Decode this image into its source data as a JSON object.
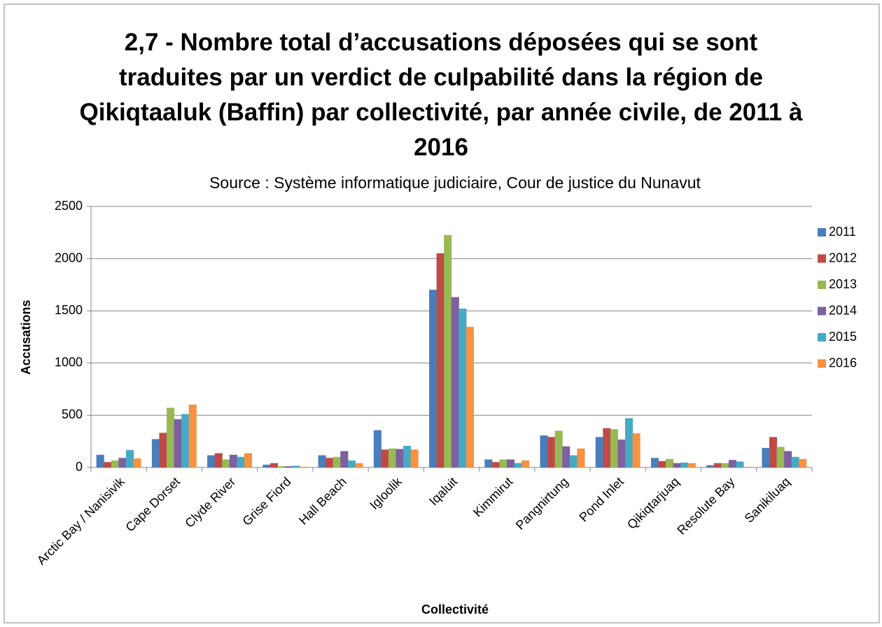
{
  "chart_data": {
    "type": "bar",
    "title": "2,7 - Nombre total d’accusations déposées qui se sont traduites par un verdict de culpabilité dans la région de Qikiqtaaluk (Baffin) par collectivité, par année civile, de 2011 à 2016",
    "subtitle": "Source : Système informatique judiciaire, Cour de justice du Nunavut",
    "x_label": "Collectivité",
    "y_label": "Accusations",
    "categories": [
      "Arctic Bay / Nanisivik",
      "Cape Dorset",
      "Clyde River",
      "Grise Fiord",
      "Hall Beach",
      "Igloolik",
      "Iqaluit",
      "Kimmirut",
      "Pangnirtung",
      "Pond Inlet",
      "Qikiqtarjuaq",
      "Resolute Bay",
      "Sanikiluaq"
    ],
    "series": [
      {
        "name": "2011",
        "color": "#4a7ebb",
        "values": [
          120,
          270,
          115,
          25,
          115,
          355,
          1700,
          75,
          305,
          290,
          90,
          20,
          185
        ]
      },
      {
        "name": "2012",
        "color": "#be4b48",
        "values": [
          50,
          330,
          135,
          40,
          90,
          170,
          2050,
          50,
          290,
          375,
          60,
          40,
          290
        ]
      },
      {
        "name": "2013",
        "color": "#98b954",
        "values": [
          65,
          570,
          75,
          10,
          100,
          180,
          2225,
          75,
          350,
          365,
          80,
          40,
          195
        ]
      },
      {
        "name": "2014",
        "color": "#7d60a0",
        "values": [
          90,
          460,
          120,
          10,
          155,
          175,
          1630,
          75,
          200,
          265,
          40,
          70,
          155
        ]
      },
      {
        "name": "2015",
        "color": "#46aac5",
        "values": [
          165,
          510,
          100,
          15,
          65,
          205,
          1520,
          40,
          115,
          470,
          45,
          55,
          100
        ]
      },
      {
        "name": "2016",
        "color": "#f69240",
        "values": [
          85,
          600,
          135,
          5,
          40,
          170,
          1345,
          65,
          180,
          325,
          40,
          5,
          80
        ]
      }
    ],
    "ylim": [
      0,
      2500
    ],
    "yticks": [
      0,
      500,
      1000,
      1500,
      2000,
      2500
    ],
    "grid": true,
    "legend": "right"
  }
}
